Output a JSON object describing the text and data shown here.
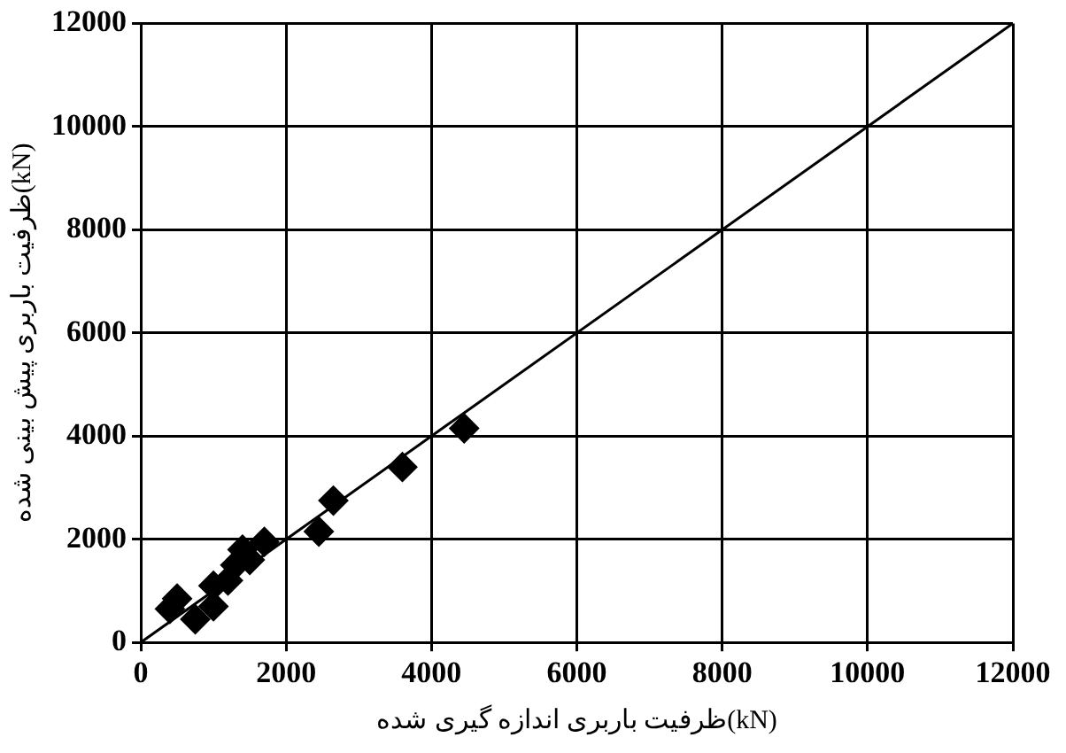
{
  "chart_data": {
    "type": "scatter",
    "xlabel": "ظرفیت باربری اندازه گیری شده(kN)",
    "ylabel": "ظرفیت باربری پیش بینی شده(kN)",
    "xlim": [
      0,
      12000
    ],
    "xticks": [
      0,
      2000,
      4000,
      6000,
      8000,
      10000,
      12000
    ],
    "ylim": [
      0,
      12000
    ],
    "yticks": [
      0,
      2000,
      4000,
      6000,
      8000,
      10000,
      12000
    ],
    "grid": true,
    "legend": false,
    "marker": "diamond",
    "series": [
      {
        "color": "#000000",
        "x": [
          400,
          500,
          750,
          1000,
          1000,
          1200,
          1300,
          1400,
          1500,
          1700,
          2450,
          2650,
          3600,
          4450
        ],
        "values": [
          650,
          850,
          450,
          700,
          1100,
          1200,
          1500,
          1800,
          1600,
          1950,
          2150,
          2750,
          3400,
          4150
        ]
      },
      {
        "type": "line",
        "color": "#000000",
        "marker": "none",
        "x": [
          0,
          12000
        ],
        "values": [
          0,
          12000
        ]
      }
    ]
  }
}
